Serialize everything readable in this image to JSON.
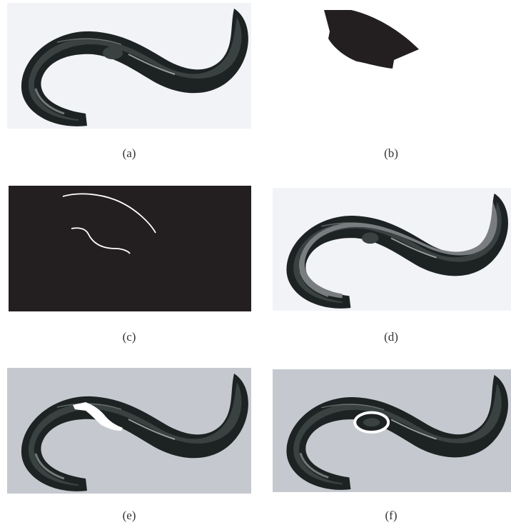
{
  "colors": {
    "light_bg": "#f1f3f7",
    "gray_bg": "#c5c9cf",
    "black_bg": "#231f20",
    "worm_dark": "#1d2222",
    "worm_mid": "#3a4141",
    "worm_highlight": "#c6cdcc",
    "mask_fill": "#231f20",
    "gray_band": "#7a7d80",
    "white": "#ffffff"
  },
  "panels": [
    {
      "id": "a",
      "label": "(a)",
      "image": "worm-grayscale"
    },
    {
      "id": "b",
      "label": "(b)",
      "image": "segmented-region-mask"
    },
    {
      "id": "c",
      "label": "(c)",
      "image": "edge-lines"
    },
    {
      "id": "d",
      "label": "(d)",
      "image": "worm-with-gray-band"
    },
    {
      "id": "e",
      "label": "(e)",
      "image": "worm-with-white-region"
    },
    {
      "id": "f",
      "label": "(f)",
      "image": "worm-with-white-ellipse"
    }
  ]
}
